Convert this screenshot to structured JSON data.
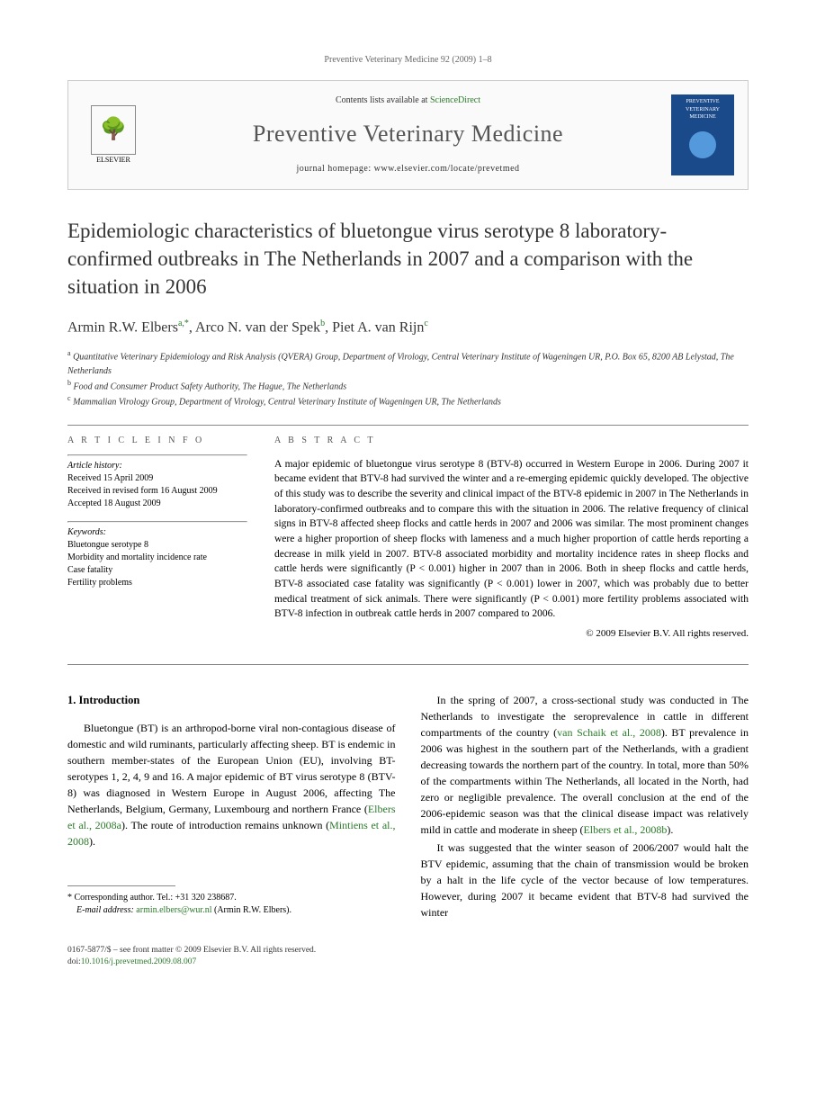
{
  "running_head": "Preventive Veterinary Medicine 92 (2009) 1–8",
  "header": {
    "contents_prefix": "Contents lists available at ",
    "contents_link": "ScienceDirect",
    "journal_name": "Preventive Veterinary Medicine",
    "homepage_prefix": "journal homepage: ",
    "homepage_url": "www.elsevier.com/locate/prevetmed",
    "elsevier_label": "ELSEVIER",
    "cover_text": "PREVENTIVE VETERINARY MEDICINE"
  },
  "title": "Epidemiologic characteristics of bluetongue virus serotype 8 laboratory-confirmed outbreaks in The Netherlands in 2007 and a comparison with the situation in 2006",
  "authors_html": "Armin R.W. Elbers",
  "author1": {
    "name": "Armin R.W. Elbers",
    "sup": "a,*"
  },
  "author2": {
    "name": "Arco N. van der Spek",
    "sup": "b"
  },
  "author3": {
    "name": "Piet A. van Rijn",
    "sup": "c"
  },
  "affiliations": {
    "a": "Quantitative Veterinary Epidemiology and Risk Analysis (QVERA) Group, Department of Virology, Central Veterinary Institute of Wageningen UR, P.O. Box 65, 8200 AB Lelystad, The Netherlands",
    "b": "Food and Consumer Product Safety Authority, The Hague, The Netherlands",
    "c": "Mammalian Virology Group, Department of Virology, Central Veterinary Institute of Wageningen UR, The Netherlands"
  },
  "article_info": {
    "header": "A R T I C L E   I N F O",
    "history_label": "Article history:",
    "received": "Received 15 April 2009",
    "revised": "Received in revised form 16 August 2009",
    "accepted": "Accepted 18 August 2009",
    "keywords_label": "Keywords:",
    "kw1": "Bluetongue serotype 8",
    "kw2": "Morbidity and mortality incidence rate",
    "kw3": "Case fatality",
    "kw4": "Fertility problems"
  },
  "abstract": {
    "header": "A B S T R A C T",
    "text": "A major epidemic of bluetongue virus serotype 8 (BTV-8) occurred in Western Europe in 2006. During 2007 it became evident that BTV-8 had survived the winter and a re-emerging epidemic quickly developed. The objective of this study was to describe the severity and clinical impact of the BTV-8 epidemic in 2007 in The Netherlands in laboratory-confirmed outbreaks and to compare this with the situation in 2006. The relative frequency of clinical signs in BTV-8 affected sheep flocks and cattle herds in 2007 and 2006 was similar. The most prominent changes were a higher proportion of sheep flocks with lameness and a much higher proportion of cattle herds reporting a decrease in milk yield in 2007. BTV-8 associated morbidity and mortality incidence rates in sheep flocks and cattle herds were significantly (P < 0.001) higher in 2007 than in 2006. Both in sheep flocks and cattle herds, BTV-8 associated case fatality was significantly (P < 0.001) lower in 2007, which was probably due to better medical treatment of sick animals. There were significantly (P < 0.001) more fertility problems associated with BTV-8 infection in outbreak cattle herds in 2007 compared to 2006.",
    "copyright": "© 2009 Elsevier B.V. All rights reserved."
  },
  "body": {
    "section_number": "1.",
    "section_title": "Introduction",
    "left_p1_a": "Bluetongue (BT) is an arthropod-borne viral non-contagious disease of domestic and wild ruminants, particularly affecting sheep. BT is endemic in southern member-states of the European Union (EU), involving BT-serotypes 1, 2, 4, 9 and 16. A major epidemic of BT virus serotype 8 (BTV-8) was diagnosed in Western Europe in August 2006, affecting The Netherlands, Belgium, Germany, Luxembourg and northern France (",
    "left_cite1": "Elbers et al., 2008a",
    "left_p1_b": "). The route of introduction remains unknown (",
    "left_cite2": "Mintiens et al., 2008",
    "left_p1_c": ").",
    "right_p1_a": "In the spring of 2007, a cross-sectional study was conducted in The Netherlands to investigate the seroprevalence in cattle in different compartments of the country (",
    "right_cite1": "van Schaik et al., 2008",
    "right_p1_b": "). BT prevalence in 2006 was highest in the southern part of the Netherlands, with a gradient decreasing towards the northern part of the country. In total, more than 50% of the compartments within The Netherlands, all located in the North, had zero or negligible prevalence. The overall conclusion at the end of the 2006-epidemic season was that the clinical disease impact was relatively mild in cattle and moderate in sheep (",
    "right_cite2": "Elbers et al., 2008b",
    "right_p1_c": ").",
    "right_p2": "It was suggested that the winter season of 2006/2007 would halt the BTV epidemic, assuming that the chain of transmission would be broken by a halt in the life cycle of the vector because of low temperatures. However, during 2007 it became evident that BTV-8 had survived the winter"
  },
  "footnote": {
    "corr_label": "* Corresponding author. Tel.: ",
    "corr_tel": "+31 320 238687.",
    "email_label": "E-mail address:",
    "email": "armin.elbers@wur.nl",
    "email_who": "(Armin R.W. Elbers)."
  },
  "footer": {
    "line1": "0167-5877/$ – see front matter © 2009 Elsevier B.V. All rights reserved.",
    "doi_label": "doi:",
    "doi": "10.1016/j.prevetmed.2009.08.007"
  },
  "colors": {
    "link_green": "#2a7a2a",
    "header_gray": "#555555",
    "cover_blue": "#1a4a8a"
  }
}
